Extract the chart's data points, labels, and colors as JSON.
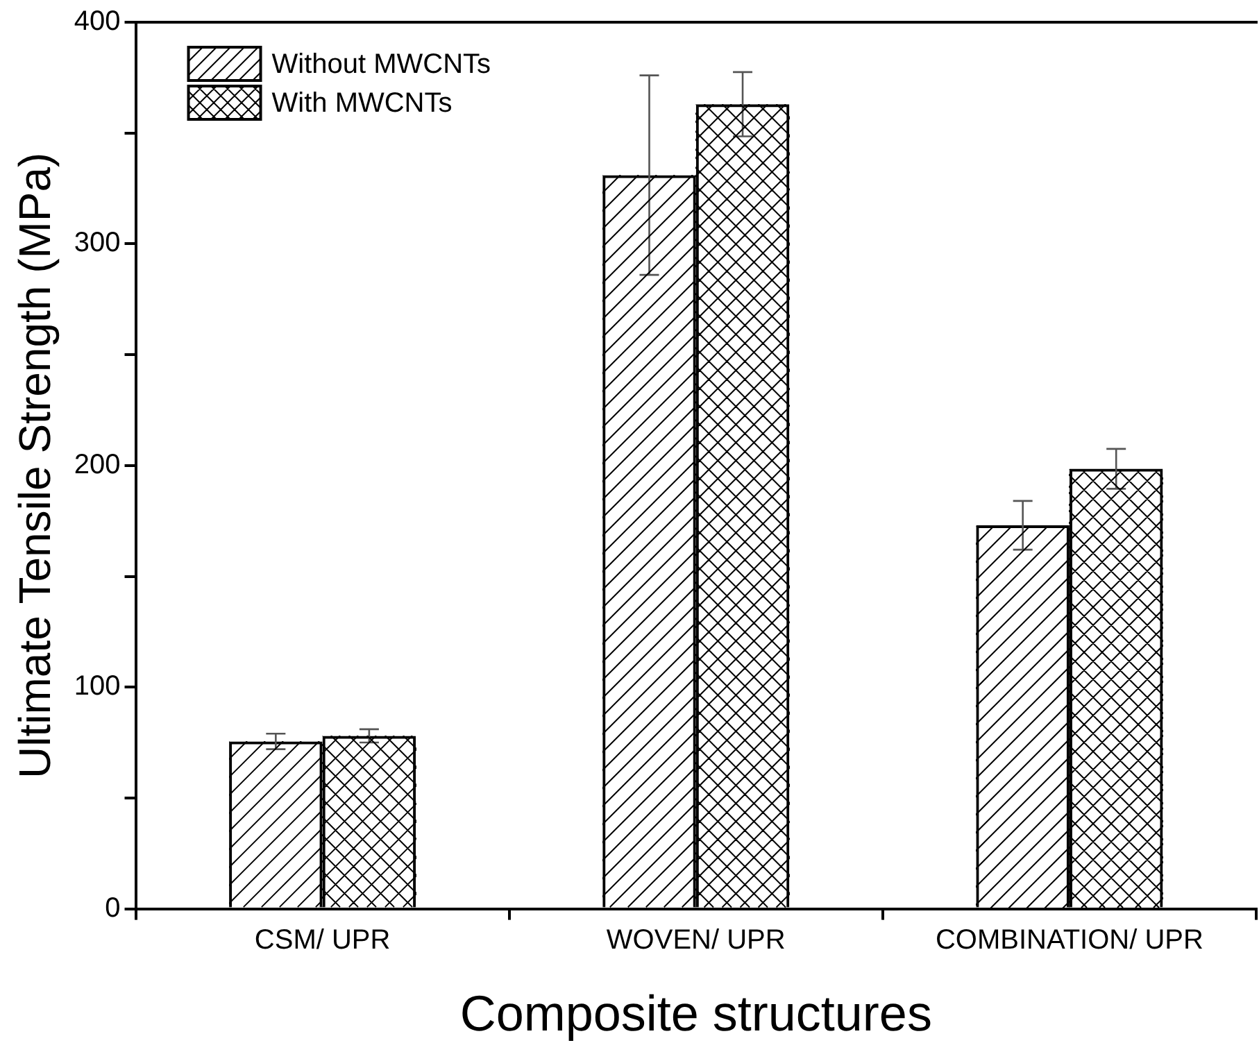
{
  "chart_data": {
    "type": "bar",
    "xlabel": "Composite structures",
    "ylabel": "Ultimate Tensile Strength (MPa)",
    "categories": [
      "CSM/ UPR",
      "WOVEN/ UPR",
      "COMBINATION/ UPR"
    ],
    "series": [
      {
        "name": "Without MWCNTs",
        "color": "#000000",
        "values": [
          75.5,
          331,
          173
        ],
        "errors": [
          3.5,
          45,
          11
        ]
      },
      {
        "name": "With MWCNTs",
        "color": "#000000",
        "values": [
          78,
          363,
          198.5
        ],
        "errors": [
          3,
          14.5,
          9
        ]
      }
    ],
    "ylim": [
      0,
      400
    ],
    "yticks": [
      0,
      {
        "value": 50,
        "label": null
      },
      100,
      {
        "value": 150,
        "label": null
      },
      200,
      {
        "value": 250,
        "label": null
      },
      300,
      {
        "value": 350,
        "label": null
      },
      400
    ],
    "grid": false,
    "legend": "top left"
  }
}
